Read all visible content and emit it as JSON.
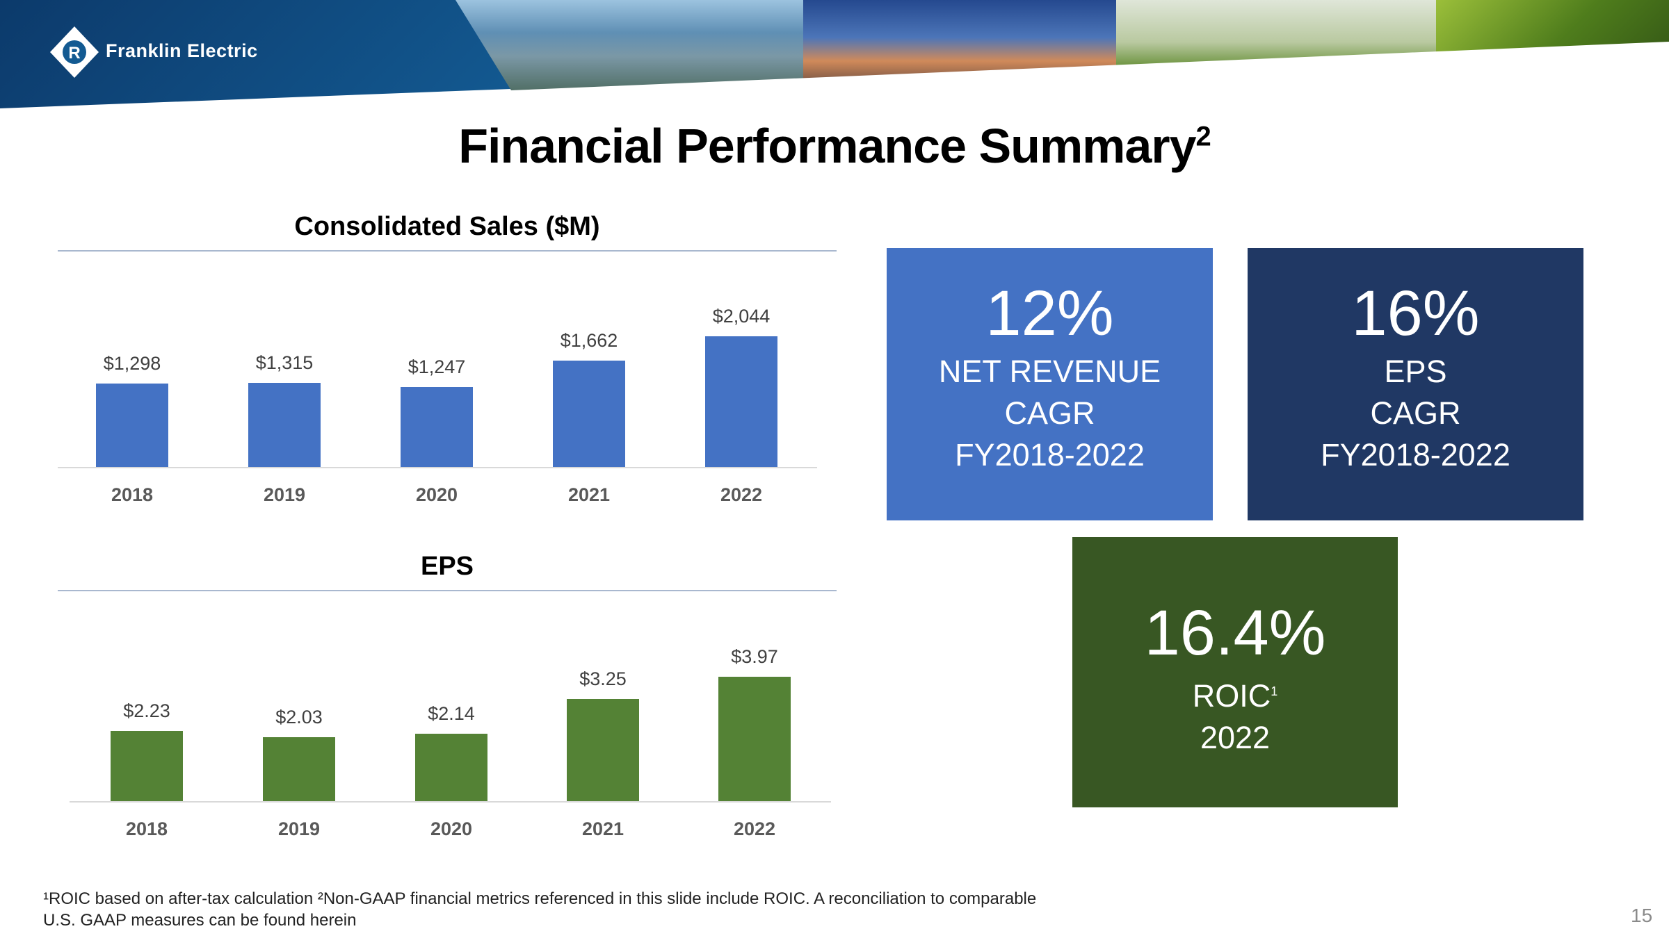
{
  "header": {
    "brand": "Franklin Electric",
    "logo_icon": "franklin-electric-diamond-logo"
  },
  "title": {
    "text": "Financial Performance Summary",
    "sup": "2"
  },
  "chart_data": [
    {
      "type": "bar",
      "title": "Consolidated Sales ($M)",
      "categories": [
        "2018",
        "2019",
        "2020",
        "2021",
        "2022"
      ],
      "values": [
        1298,
        1315,
        1247,
        1662,
        2044
      ],
      "labels": [
        "$1,298",
        "$1,315",
        "$1,247",
        "$1,662",
        "$2,044"
      ],
      "color": "#4472C4",
      "grid": false
    },
    {
      "type": "bar",
      "title": "EPS",
      "categories": [
        "2018",
        "2019",
        "2020",
        "2021",
        "2022"
      ],
      "values": [
        2.23,
        2.03,
        2.14,
        3.25,
        3.97
      ],
      "labels": [
        "$2.23",
        "$2.03",
        "$2.14",
        "$3.25",
        "$3.97"
      ],
      "color": "#548235",
      "grid": false
    }
  ],
  "kpis": [
    {
      "value": "12%",
      "lines": [
        "NET REVENUE",
        "CAGR",
        "FY2018-2022"
      ],
      "color": "#4472C4"
    },
    {
      "value": "16%",
      "lines": [
        "EPS",
        "CAGR",
        "FY2018-2022"
      ],
      "color": "#203864"
    },
    {
      "value": "16.4%",
      "lines": [
        "ROIC",
        "2022"
      ],
      "sup": "1",
      "color": "#385723"
    }
  ],
  "footer": {
    "line1": "¹ROIC based on after-tax calculation ²Non-GAAP financial metrics referenced in this slide include ROIC. A reconciliation to comparable",
    "line2": "U.S. GAAP measures can be found herein",
    "page": "15"
  }
}
